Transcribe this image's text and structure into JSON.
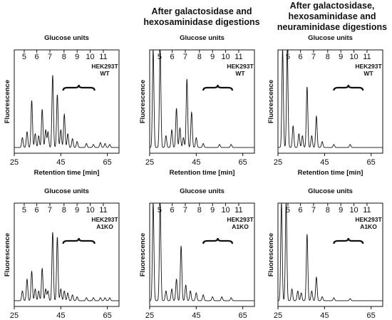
{
  "column_titles": [
    "",
    "After galactosidase and\nhexosaminidase digestions",
    "After galactosidase,\nhexosaminidase and\nneuraminidase digestions"
  ],
  "glucose_units_label": "Glucose units",
  "xlabel": "Retention time [min]",
  "ylabel": "Fluorescence",
  "gu_ticks": [
    "5",
    "6",
    "7",
    "8",
    "9",
    "10",
    "11"
  ],
  "rt_ticks": [
    "25",
    "45",
    "65"
  ],
  "chart_data": [
    {
      "type": "line",
      "row": 0,
      "col": 0,
      "annotation": "HEK293T\nWT",
      "xlim": [
        25,
        70
      ],
      "ylim": [
        0,
        100
      ],
      "bracket": [
        46,
        59.5
      ],
      "peaks": [
        [
          28.5,
          10
        ],
        [
          30.5,
          16
        ],
        [
          32.5,
          48
        ],
        [
          34,
          14
        ],
        [
          35.5,
          12
        ],
        [
          37,
          39
        ],
        [
          38.5,
          18
        ],
        [
          39.5,
          16
        ],
        [
          41.5,
          74
        ],
        [
          43.5,
          54
        ],
        [
          45,
          18
        ],
        [
          46.5,
          34
        ],
        [
          48,
          14
        ],
        [
          50,
          9
        ],
        [
          52,
          6
        ],
        [
          56,
          4
        ],
        [
          59,
          3
        ],
        [
          62,
          5
        ],
        [
          64,
          4
        ],
        [
          66,
          3
        ]
      ]
    },
    {
      "type": "line",
      "row": 0,
      "col": 1,
      "annotation": "HEK293T\nWT",
      "xlim": [
        25,
        70
      ],
      "ylim": [
        0,
        100
      ],
      "bracket": [
        48,
        60.5
      ],
      "peaks": [
        [
          26.5,
          100
        ],
        [
          29.5,
          100
        ],
        [
          32,
          12
        ],
        [
          34.5,
          18
        ],
        [
          36.5,
          40
        ],
        [
          38,
          20
        ],
        [
          39.5,
          10
        ],
        [
          41,
          70
        ],
        [
          43,
          36
        ],
        [
          45,
          10
        ],
        [
          48,
          4
        ],
        [
          55,
          3
        ],
        [
          60,
          3
        ]
      ]
    },
    {
      "type": "line",
      "row": 0,
      "col": 2,
      "annotation": "HEK293T\nWT",
      "xlim": [
        25,
        70
      ],
      "ylim": [
        0,
        100
      ],
      "bracket": [
        49,
        61.5
      ],
      "peaks": [
        [
          27,
          100
        ],
        [
          29,
          100
        ],
        [
          31.5,
          22
        ],
        [
          34,
          14
        ],
        [
          35.5,
          12
        ],
        [
          37.5,
          62
        ],
        [
          39.5,
          12
        ],
        [
          41.5,
          32
        ],
        [
          44,
          6
        ],
        [
          49,
          3
        ],
        [
          56,
          3
        ]
      ]
    },
    {
      "type": "line",
      "row": 1,
      "col": 0,
      "annotation": "HEK293T\nA1KO",
      "xlim": [
        25,
        70
      ],
      "ylim": [
        0,
        100
      ],
      "bracket": [
        46,
        59.5
      ],
      "peaks": [
        [
          28.5,
          10
        ],
        [
          30.5,
          22
        ],
        [
          32.5,
          30
        ],
        [
          34,
          12
        ],
        [
          35.5,
          10
        ],
        [
          37,
          33
        ],
        [
          38.5,
          12
        ],
        [
          39.5,
          10
        ],
        [
          41.5,
          70
        ],
        [
          43.5,
          65
        ],
        [
          45,
          12
        ],
        [
          46.5,
          10
        ],
        [
          48,
          8
        ],
        [
          50,
          6
        ],
        [
          52,
          4
        ],
        [
          56,
          3
        ],
        [
          59,
          3
        ],
        [
          62,
          3
        ],
        [
          64,
          3
        ],
        [
          66,
          3
        ]
      ]
    },
    {
      "type": "line",
      "row": 1,
      "col": 1,
      "annotation": "HEK293T\nA1KO",
      "xlim": [
        25,
        70
      ],
      "ylim": [
        0,
        100
      ],
      "bracket": [
        48,
        60.5
      ],
      "peaks": [
        [
          26.5,
          100
        ],
        [
          29.5,
          100
        ],
        [
          32,
          10
        ],
        [
          34.5,
          12
        ],
        [
          36.5,
          22
        ],
        [
          38.5,
          56
        ],
        [
          40.5,
          16
        ],
        [
          42.5,
          10
        ],
        [
          45,
          8
        ],
        [
          48,
          6
        ],
        [
          52,
          4
        ],
        [
          56,
          4
        ],
        [
          60,
          3
        ]
      ]
    },
    {
      "type": "line",
      "row": 1,
      "col": 2,
      "annotation": "HEK293T\nA1KO",
      "xlim": [
        25,
        70
      ],
      "ylim": [
        0,
        100
      ],
      "bracket": [
        49,
        61.5
      ],
      "peaks": [
        [
          26.5,
          100
        ],
        [
          28.5,
          100
        ],
        [
          31,
          12
        ],
        [
          33.5,
          10
        ],
        [
          35,
          8
        ],
        [
          37.5,
          68
        ],
        [
          39.5,
          10
        ],
        [
          41.5,
          24
        ],
        [
          44,
          4
        ],
        [
          49,
          3
        ],
        [
          56,
          2
        ]
      ]
    }
  ]
}
